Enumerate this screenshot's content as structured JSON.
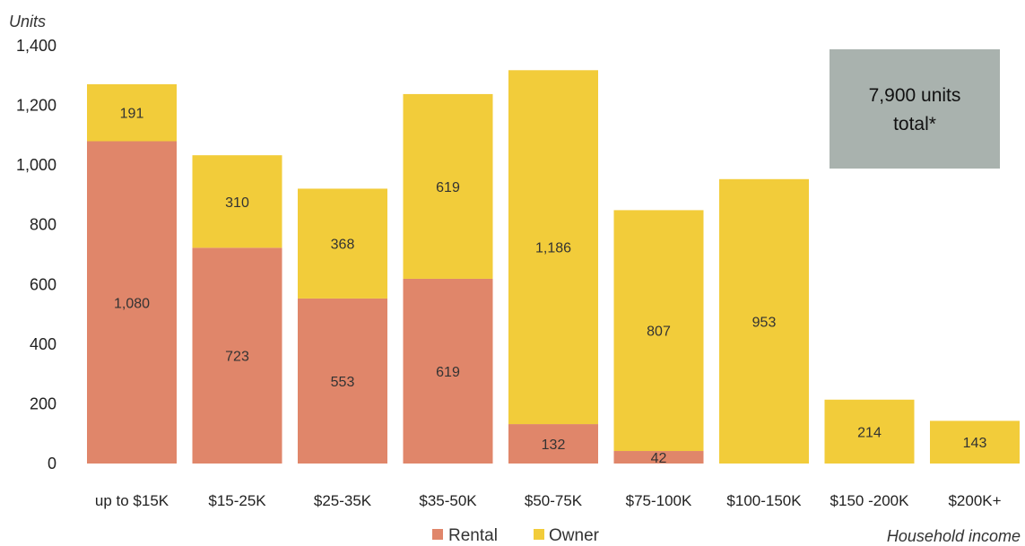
{
  "chart_data": {
    "type": "bar",
    "stacked": true,
    "ylabel": "Units",
    "xlabel": "Household income",
    "ylim": [
      0,
      1400
    ],
    "yticks": [
      0,
      200,
      400,
      600,
      800,
      1000,
      1200,
      1400
    ],
    "ytick_labels": [
      "0",
      "200",
      "400",
      "600",
      "800",
      "1,000",
      "1,200",
      "1,400"
    ],
    "grid": false,
    "legend_position": "bottom",
    "categories": [
      "up to $15K",
      "$15-25K",
      "$25-35K",
      "$35-50K",
      "$50-75K",
      "$75-100K",
      "$100-150K",
      "$150 -200K",
      "$200K+"
    ],
    "series": [
      {
        "name": "Rental",
        "color": "#E0866A",
        "values": [
          1080,
          723,
          553,
          619,
          132,
          42,
          0,
          0,
          0
        ],
        "labels": [
          "1,080",
          "723",
          "553",
          "619",
          "132",
          "42",
          "",
          "",
          ""
        ]
      },
      {
        "name": "Owner",
        "color": "#F2CC3A",
        "values": [
          191,
          310,
          368,
          619,
          1186,
          807,
          953,
          214,
          143
        ],
        "labels": [
          "191",
          "310",
          "368",
          "619",
          "1,186",
          "807",
          "953",
          "214",
          "143"
        ]
      }
    ],
    "annotation": {
      "line1": "7,900 units",
      "line2": "total*",
      "color": "#A9B2AE"
    }
  }
}
